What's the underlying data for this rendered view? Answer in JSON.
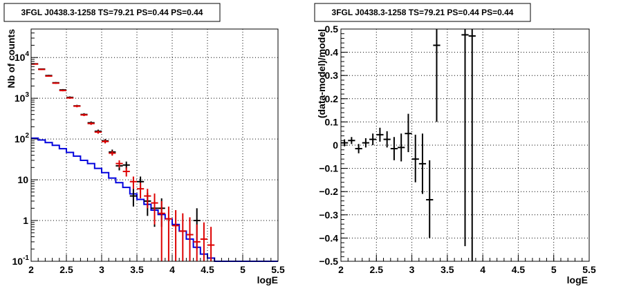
{
  "chart_data": [
    {
      "type": "line",
      "title": "3FGL J0438.3-1258 TS=79.21 PS=0.44 PS=0.44",
      "xlabel": "logE",
      "ylabel": "Nb of counts",
      "xlim": [
        2,
        5.5
      ],
      "ylim": [
        0.1,
        50000
      ],
      "yscale": "log",
      "grid": true,
      "x_ticks": [
        "2",
        "2.5",
        "3",
        "3.5",
        "4",
        "4.5",
        "5",
        "5.5"
      ],
      "y_ticks": [
        {
          "value": 0.1,
          "label": "10",
          "exp": "-1"
        },
        {
          "value": 1,
          "label": "1",
          "exp": ""
        },
        {
          "value": 10,
          "label": "10",
          "exp": ""
        },
        {
          "value": 100,
          "label": "10",
          "exp": "2"
        },
        {
          "value": 1000,
          "label": "10",
          "exp": "3"
        },
        {
          "value": 10000,
          "label": "10",
          "exp": "4"
        }
      ],
      "bin_edges": [
        2.0,
        2.1,
        2.2,
        2.3,
        2.4,
        2.5,
        2.6,
        2.7,
        2.8,
        2.9,
        3.0,
        3.1,
        3.2,
        3.3,
        3.4,
        3.5,
        3.6,
        3.7,
        3.8,
        3.9,
        4.0,
        4.1,
        4.2,
        4.3,
        4.4,
        4.5,
        4.6,
        4.7,
        4.8,
        4.9,
        5.0,
        5.1,
        5.2,
        5.3,
        5.4,
        5.5
      ],
      "series": [
        {
          "kind": "step",
          "color": "#0000dd",
          "values": [
            105,
            95,
            82,
            70,
            58,
            47,
            38,
            30,
            25,
            19,
            15,
            11,
            8.5,
            6.5,
            4.5,
            3.3,
            2.5,
            1.8,
            1.4,
            1.1,
            0.8,
            0.55,
            0.35,
            0.22,
            0.15,
            0.12,
            0.1,
            0.1,
            0.1,
            0.1,
            0.1,
            0.1,
            0.1,
            0.1,
            0.1
          ]
        },
        {
          "kind": "errorbar",
          "color": "#000000",
          "x": [
            2.05,
            2.15,
            2.25,
            2.35,
            2.45,
            2.55,
            2.65,
            2.75,
            2.85,
            2.95,
            3.05,
            3.15,
            3.25,
            3.35,
            3.45,
            3.55,
            3.65,
            3.75,
            3.85,
            4.35
          ],
          "y": [
            7000,
            5200,
            3600,
            2400,
            1600,
            1050,
            650,
            400,
            250,
            155,
            90,
            48,
            22,
            23,
            4,
            9,
            3,
            2,
            2,
            1
          ],
          "ylo": [
            6800,
            5000,
            3450,
            2300,
            1520,
            990,
            610,
            370,
            230,
            140,
            80,
            41,
            17,
            18,
            2.2,
            6,
            1.3,
            0.7,
            0.7,
            0.2
          ],
          "yhi": [
            7200,
            5400,
            3750,
            2500,
            1680,
            1110,
            690,
            430,
            270,
            170,
            100,
            55,
            27,
            28,
            6,
            12,
            4.8,
            3.5,
            3.5,
            2
          ]
        },
        {
          "kind": "errorbar",
          "color": "#dd0000",
          "x": [
            2.05,
            2.15,
            2.25,
            2.35,
            2.45,
            2.55,
            2.65,
            2.75,
            2.85,
            2.95,
            3.05,
            3.15,
            3.25,
            3.35,
            3.45,
            3.55,
            3.65,
            3.75,
            3.85,
            3.95,
            4.05,
            4.15,
            4.25,
            4.35,
            4.45,
            4.55
          ],
          "y": [
            6900,
            5100,
            3500,
            2350,
            1550,
            1020,
            640,
            390,
            240,
            148,
            87,
            45,
            25,
            16,
            9,
            6,
            4,
            2.7,
            1.5,
            1.1,
            0.75,
            0.55,
            0.45,
            0.3,
            0.35,
            0.25
          ],
          "ylo": [
            6700,
            4950,
            3380,
            2260,
            1480,
            970,
            600,
            365,
            222,
            135,
            78,
            39,
            20,
            12,
            6,
            3.5,
            2,
            0.8,
            0.1,
            0.1,
            0.1,
            0.1,
            0.1,
            0.1,
            0.1,
            0.1
          ],
          "yhi": [
            7100,
            5250,
            3620,
            2440,
            1620,
            1070,
            680,
            415,
            258,
            161,
            96,
            51,
            30,
            20,
            12,
            8.5,
            6,
            4.6,
            3.0,
            2.2,
            1.8,
            1.5,
            1.2,
            0.8,
            0.9,
            0.7
          ]
        }
      ]
    },
    {
      "type": "scatter",
      "title": "3FGL J0438.3-1258 TS=79.21 PS=0.44 PS=0.44",
      "xlabel": "logE",
      "ylabel": "(data-model)/model",
      "xlim": [
        2,
        5.5
      ],
      "ylim": [
        -0.5,
        0.5
      ],
      "grid": true,
      "x_ticks": [
        "2",
        "2.5",
        "3",
        "3.5",
        "4",
        "4.5",
        "5",
        "5.5"
      ],
      "y_ticks": [
        "−0.5",
        "−0.4",
        "−0.3",
        "−0.2",
        "−0.1",
        "0",
        "0.1",
        "0.2",
        "0.3",
        "0.4",
        "0.5"
      ],
      "series": [
        {
          "kind": "errorbar",
          "color": "#000000",
          "x": [
            2.05,
            2.15,
            2.25,
            2.35,
            2.45,
            2.55,
            2.65,
            2.75,
            2.85,
            2.95,
            3.05,
            3.15,
            3.25,
            3.35,
            3.75,
            3.85
          ],
          "y": [
            0.01,
            0.02,
            -0.015,
            0.01,
            0.025,
            0.045,
            0.025,
            -0.015,
            -0.01,
            0.05,
            -0.06,
            -0.08,
            -0.235,
            0.43,
            0.475,
            0.47
          ],
          "ylo": [
            -0.005,
            0.005,
            -0.035,
            -0.01,
            0.0,
            0.015,
            -0.01,
            -0.065,
            -0.07,
            -0.03,
            -0.16,
            -0.21,
            -0.4,
            0.1,
            -0.435,
            -0.5
          ],
          "yhi": [
            0.025,
            0.035,
            0.005,
            0.03,
            0.05,
            0.075,
            0.06,
            0.035,
            0.05,
            0.135,
            0.045,
            0.05,
            -0.065,
            0.5,
            0.5,
            0.5
          ]
        }
      ]
    }
  ]
}
